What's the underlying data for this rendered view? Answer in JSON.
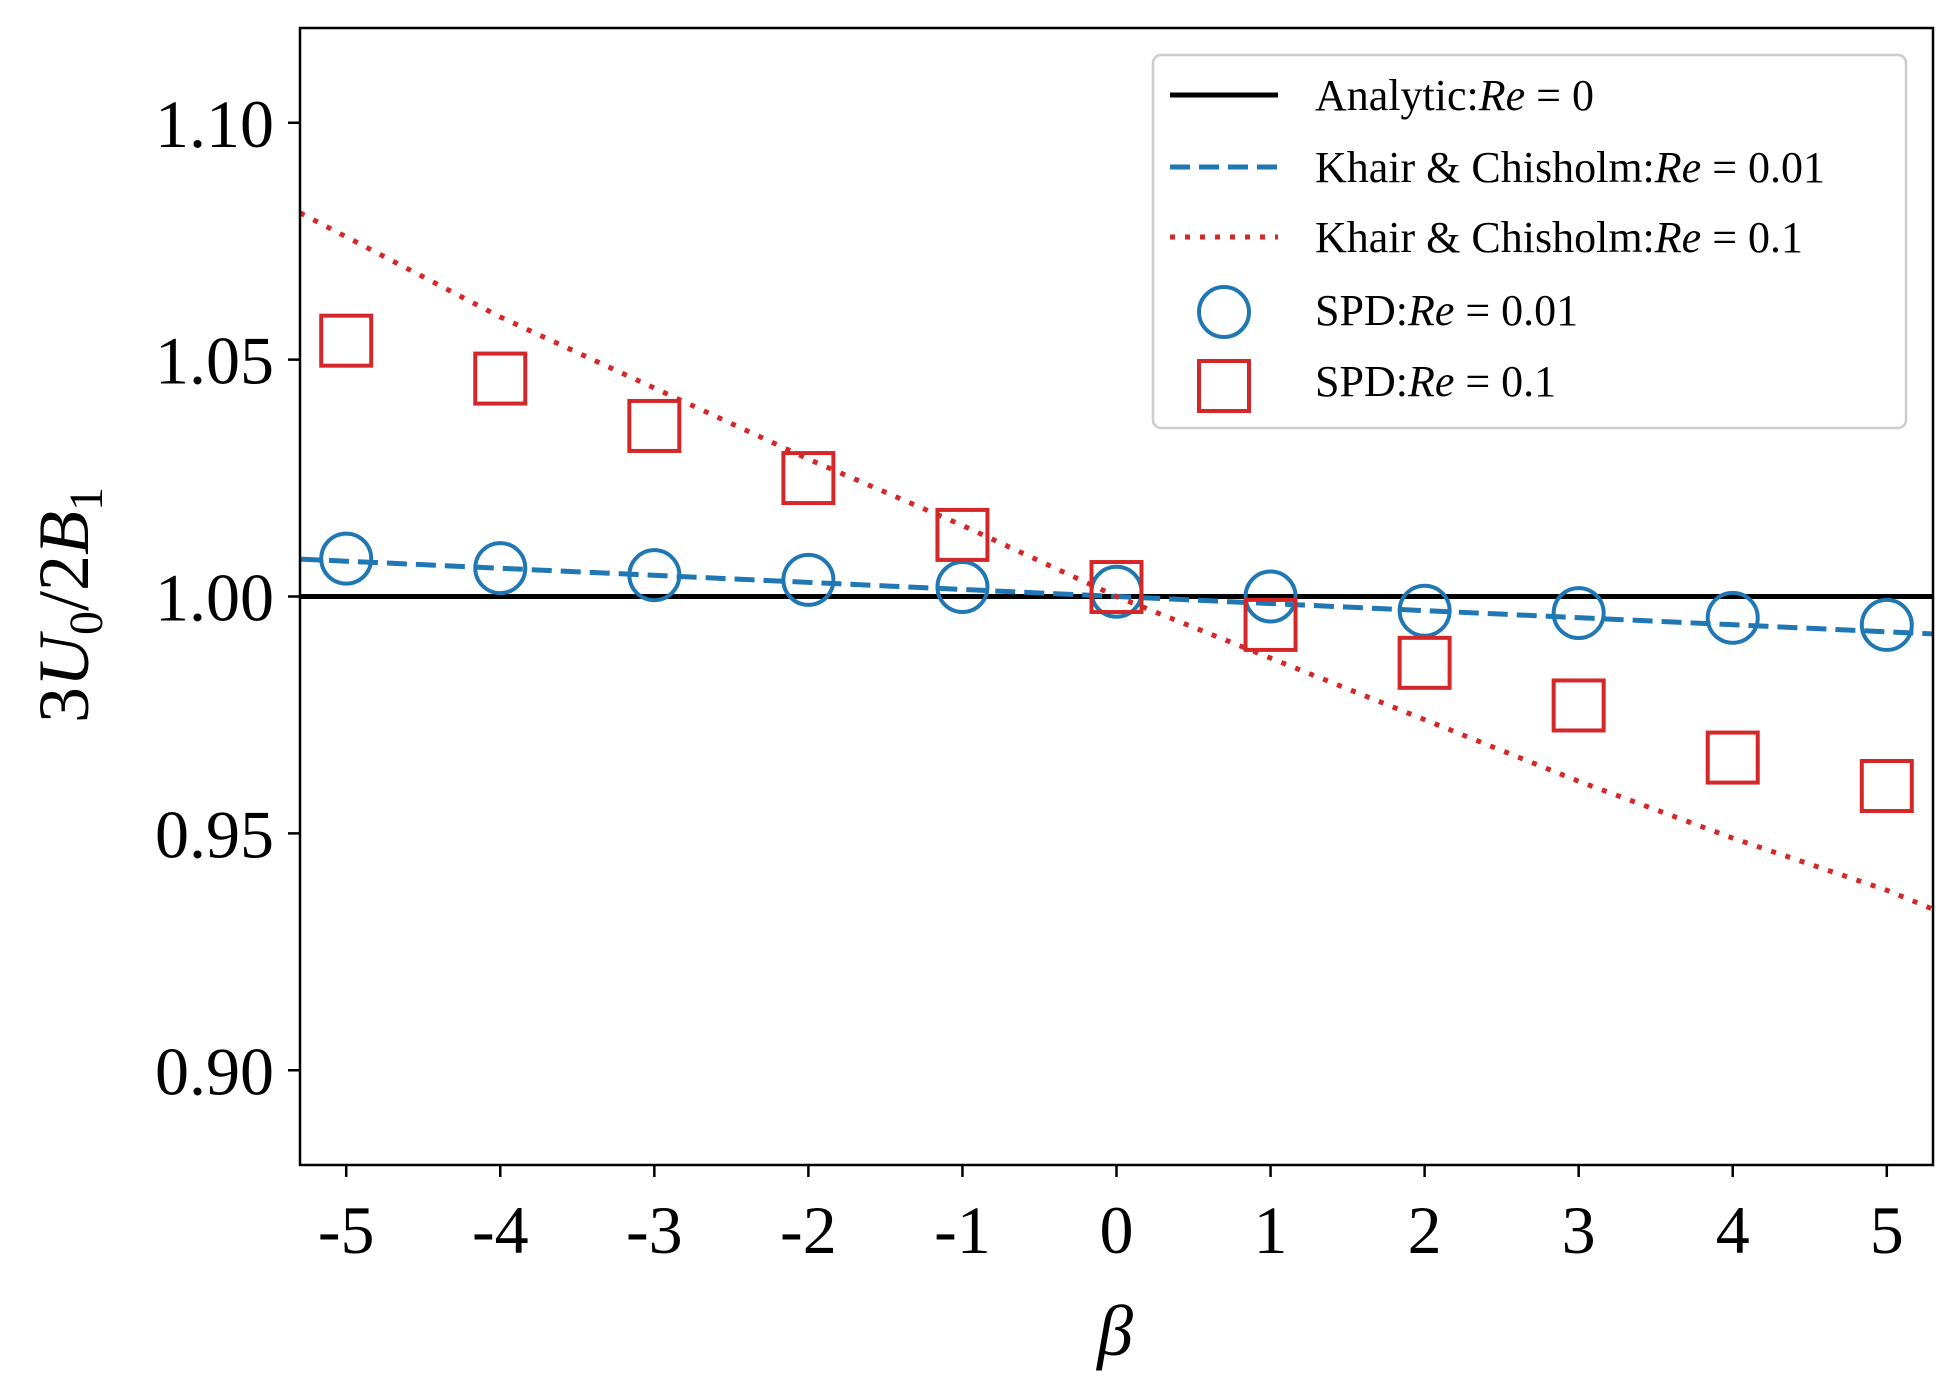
{
  "chart_data": {
    "type": "line",
    "xlabel": "β",
    "ylabel_parts": {
      "lead": "3",
      "u": "U",
      "u_sub": "0",
      "mid": "/2",
      "b": "B",
      "b_sub": "1"
    },
    "xlim": [
      -5.3,
      5.3
    ],
    "ylim": [
      0.88,
      1.12
    ],
    "x_ticks": [
      -5,
      -4,
      -3,
      -2,
      -1,
      0,
      1,
      2,
      3,
      4,
      5
    ],
    "x_tick_labels": [
      "-5",
      "-4",
      "-3",
      "-2",
      "-1",
      "0",
      "1",
      "2",
      "3",
      "4",
      "5"
    ],
    "y_ticks": [
      0.9,
      0.95,
      1.0,
      1.05,
      1.1
    ],
    "y_tick_labels": [
      "0.90",
      "0.95",
      "1.00",
      "1.05",
      "1.10"
    ],
    "grid": false,
    "legend_position": "top-right",
    "series": [
      {
        "name": "Analytic:Re = 0",
        "legend_label": {
          "prefix": "Analytic:",
          "re": "Re",
          "eq": " = 0"
        },
        "style": "solid",
        "color": "#000000",
        "x": [
          -5.3,
          5.3
        ],
        "values": [
          1.0,
          1.0
        ]
      },
      {
        "name": "Khair & Chisholm:Re = 0.01",
        "legend_label": {
          "prefix": "Khair & Chisholm:",
          "re": "Re",
          "eq": " = 0.01"
        },
        "style": "dashed",
        "color": "#1f77b4",
        "x": [
          -5.3,
          5.3
        ],
        "values": [
          1.0079,
          0.9921
        ]
      },
      {
        "name": "Khair & Chisholm:Re = 0.1",
        "legend_label": {
          "prefix": "Khair & Chisholm:",
          "re": "Re",
          "eq": " = 0.1"
        },
        "style": "dotted",
        "color": "#d62728",
        "x": [
          -5.3,
          -4,
          -3,
          -2,
          -1,
          0,
          1,
          2,
          3,
          4,
          5,
          5.3
        ],
        "values": [
          1.081,
          1.059,
          1.044,
          1.029,
          1.015,
          1.0,
          0.987,
          0.974,
          0.961,
          0.949,
          0.938,
          0.934
        ]
      },
      {
        "name": "SPD:Re = 0.01",
        "legend_label": {
          "prefix": "SPD:",
          "re": "Re",
          "eq": " = 0.01"
        },
        "style": "circle-marker",
        "color": "#1f77b4",
        "x": [
          -5,
          -4,
          -3,
          -2,
          -1,
          0,
          1,
          2,
          3,
          4,
          5
        ],
        "values": [
          1.008,
          1.006,
          1.0045,
          1.0035,
          1.002,
          1.001,
          1.0,
          0.997,
          0.9965,
          0.9955,
          0.994
        ]
      },
      {
        "name": "SPD:Re = 0.1",
        "legend_label": {
          "prefix": "SPD:",
          "re": "Re",
          "eq": " = 0.1"
        },
        "style": "square-marker",
        "color": "#d62728",
        "x": [
          -5,
          -4,
          -3,
          -2,
          -1,
          0,
          1,
          2,
          3,
          4,
          5
        ],
        "values": [
          1.054,
          1.046,
          1.036,
          1.025,
          1.013,
          1.002,
          0.994,
          0.986,
          0.977,
          0.966,
          0.96
        ]
      }
    ]
  }
}
